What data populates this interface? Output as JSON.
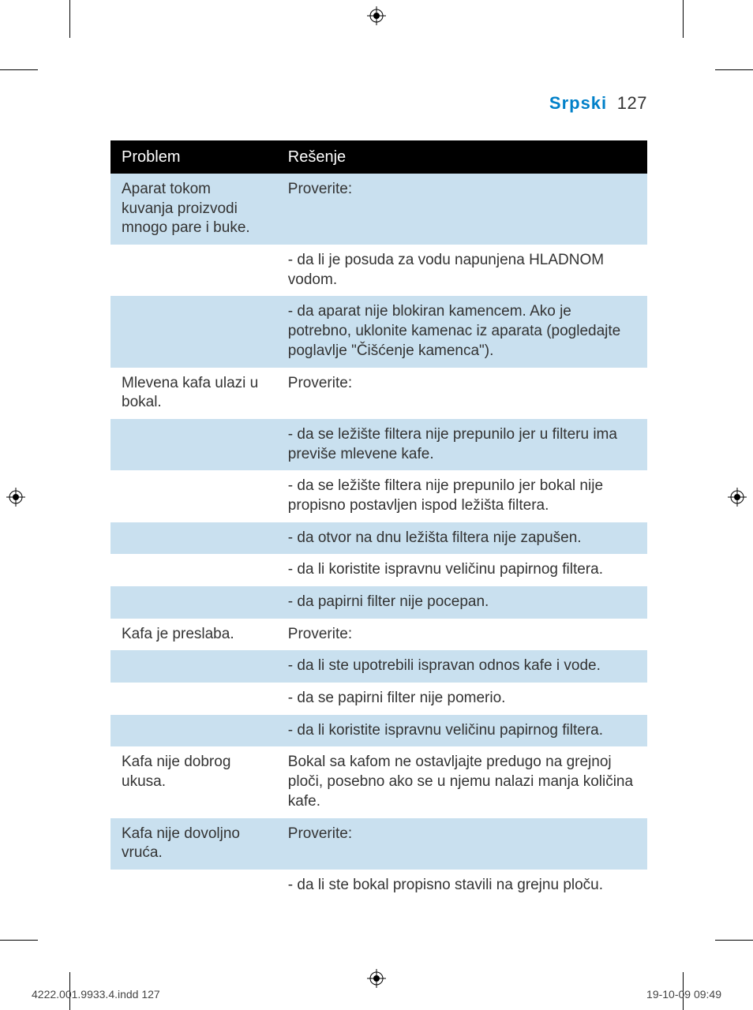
{
  "colors": {
    "accent": "#0080c9",
    "header_bg": "#000000",
    "header_fg": "#ffffff",
    "row_shade": "#c9e0ef",
    "row_plain": "#ffffff",
    "text": "#333333",
    "page_bg": "#ffffff"
  },
  "header": {
    "language_label": "Srpski",
    "page_number": "127"
  },
  "table": {
    "columns": [
      "Problem",
      "Rešenje"
    ],
    "col_widths_pct": [
      31,
      69
    ],
    "font_size_pt": 19,
    "rows": [
      {
        "shaded": true,
        "problem": "Aparat tokom kuvanja proizvodi mnogo pare i buke.",
        "solution": "Proverite:"
      },
      {
        "shaded": false,
        "problem": "",
        "solution": "- da li je posuda za vodu napunjena HLADNOM vodom."
      },
      {
        "shaded": true,
        "problem": "",
        "solution": "- da aparat nije blokiran kamencem. Ako je potrebno, uklonite kamenac iz aparata (pogledajte poglavlje \"Čišćenje kamenca\")."
      },
      {
        "shaded": false,
        "problem": "Mlevena kafa ulazi u bokal.",
        "solution": "Proverite:"
      },
      {
        "shaded": true,
        "problem": "",
        "solution": "- da se ležište filtera nije prepunilo jer u filteru ima previše mlevene kafe."
      },
      {
        "shaded": false,
        "problem": "",
        "solution": "- da se ležište filtera nije prepunilo jer bokal nije propisno postavljen ispod ležišta filtera."
      },
      {
        "shaded": true,
        "problem": "",
        "solution": "- da otvor na dnu ležišta filtera nije zapušen."
      },
      {
        "shaded": false,
        "problem": "",
        "solution": "- da li koristite ispravnu veličinu papirnog filtera."
      },
      {
        "shaded": true,
        "problem": "",
        "solution": "- da papirni filter nije pocepan."
      },
      {
        "shaded": false,
        "problem": "Kafa je preslaba.",
        "solution": "Proverite:"
      },
      {
        "shaded": true,
        "problem": "",
        "solution": "- da li ste upotrebili ispravan odnos kafe i vode."
      },
      {
        "shaded": false,
        "problem": "",
        "solution": "- da se papirni filter nije pomerio."
      },
      {
        "shaded": true,
        "problem": "",
        "solution": "- da li koristite ispravnu veličinu papirnog filtera."
      },
      {
        "shaded": false,
        "problem": "Kafa nije dobrog ukusa.",
        "solution": "Bokal sa kafom ne ostavljajte predugo na grejnoj ploči, posebno ako se u njemu nalazi manja količina kafe."
      },
      {
        "shaded": true,
        "problem": "Kafa nije dovoljno vruća.",
        "solution": "Proverite:"
      },
      {
        "shaded": false,
        "problem": "",
        "solution": "- da li ste bokal propisno stavili na grejnu ploču."
      }
    ]
  },
  "footer": {
    "left": "4222.001.9933.4.indd   127",
    "right": "19-10-09   09:49"
  }
}
